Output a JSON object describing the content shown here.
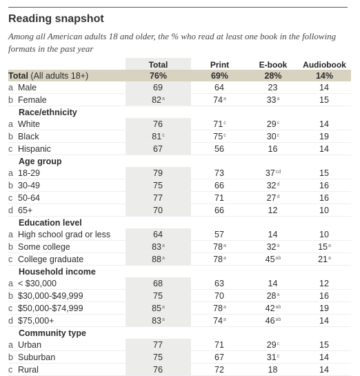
{
  "title": "Reading snapshot",
  "subtitle": "Among all American adults 18 and older, the % who read at least one book in the following formats in the past year",
  "chart_data": {
    "type": "table",
    "columns": [
      "Total",
      "Print",
      "E-book",
      "Audiobook"
    ],
    "total_row": {
      "label": "Total",
      "label_note": "(All adults 18+)",
      "values": [
        "76%",
        "69%",
        "28%",
        "14%"
      ]
    },
    "groups": [
      {
        "name": "",
        "rows": [
          {
            "letter": "a",
            "label": "Male",
            "values": [
              "69",
              "64",
              "23",
              "14"
            ],
            "sups": [
              "",
              "",
              "",
              ""
            ]
          },
          {
            "letter": "b",
            "label": "Female",
            "values": [
              "82",
              "74",
              "33",
              "15"
            ],
            "sups": [
              "a",
              "a",
              "a",
              ""
            ]
          }
        ]
      },
      {
        "name": "Race/ethnicity",
        "rows": [
          {
            "letter": "a",
            "label": "White",
            "values": [
              "76",
              "71",
              "29",
              "14"
            ],
            "sups": [
              "",
              "c",
              "c",
              ""
            ]
          },
          {
            "letter": "b",
            "label": "Black",
            "values": [
              "81",
              "75",
              "30",
              "19"
            ],
            "sups": [
              "c",
              "c",
              "c",
              ""
            ]
          },
          {
            "letter": "c",
            "label": "Hispanic",
            "values": [
              "67",
              "56",
              "16",
              "14"
            ],
            "sups": [
              "",
              "",
              "",
              ""
            ]
          }
        ]
      },
      {
        "name": "Age group",
        "rows": [
          {
            "letter": "a",
            "label": "18-29",
            "values": [
              "79",
              "73",
              "37",
              "15"
            ],
            "sups": [
              "",
              "",
              "cd",
              ""
            ]
          },
          {
            "letter": "b",
            "label": "30-49",
            "values": [
              "75",
              "66",
              "32",
              "16"
            ],
            "sups": [
              "",
              "",
              "d",
              ""
            ]
          },
          {
            "letter": "c",
            "label": "50-64",
            "values": [
              "77",
              "71",
              "27",
              "16"
            ],
            "sups": [
              "",
              "",
              "d",
              ""
            ]
          },
          {
            "letter": "d",
            "label": "65+",
            "values": [
              "70",
              "66",
              "12",
              "10"
            ],
            "sups": [
              "",
              "",
              "",
              ""
            ]
          }
        ]
      },
      {
        "name": "Education level",
        "rows": [
          {
            "letter": "a",
            "label": "High school grad or less",
            "values": [
              "64",
              "57",
              "14",
              "10"
            ],
            "sups": [
              "",
              "",
              "",
              ""
            ]
          },
          {
            "letter": "b",
            "label": "Some college",
            "values": [
              "83",
              "78",
              "32",
              "15"
            ],
            "sups": [
              "a",
              "a",
              "a",
              "a"
            ]
          },
          {
            "letter": "c",
            "label": "College graduate",
            "values": [
              "88",
              "78",
              "45",
              "21"
            ],
            "sups": [
              "a",
              "a",
              "ab",
              "a"
            ]
          }
        ]
      },
      {
        "name": "Household income",
        "rows": [
          {
            "letter": "a",
            "label": "< $30,000",
            "values": [
              "68",
              "63",
              "14",
              "12"
            ],
            "sups": [
              "",
              "",
              "",
              ""
            ]
          },
          {
            "letter": "b",
            "label": "$30,000-$49,999",
            "values": [
              "75",
              "70",
              "28",
              "16"
            ],
            "sups": [
              "",
              "",
              "a",
              ""
            ]
          },
          {
            "letter": "c",
            "label": "$50,000-$74,999",
            "values": [
              "85",
              "78",
              "42",
              "19"
            ],
            "sups": [
              "a",
              "a",
              "ab",
              ""
            ]
          },
          {
            "letter": "d",
            "label": "$75,000+",
            "values": [
              "83",
              "74",
              "46",
              "14"
            ],
            "sups": [
              "a",
              "a",
              "ab",
              ""
            ]
          }
        ]
      },
      {
        "name": "Community type",
        "rows": [
          {
            "letter": "a",
            "label": "Urban",
            "values": [
              "77",
              "71",
              "29",
              "15"
            ],
            "sups": [
              "",
              "",
              "c",
              ""
            ]
          },
          {
            "letter": "b",
            "label": "Suburban",
            "values": [
              "75",
              "67",
              "31",
              "14"
            ],
            "sups": [
              "",
              "",
              "c",
              ""
            ]
          },
          {
            "letter": "c",
            "label": "Rural",
            "values": [
              "76",
              "72",
              "18",
              "14"
            ],
            "sups": [
              "",
              "",
              "",
              ""
            ]
          }
        ]
      }
    ]
  }
}
